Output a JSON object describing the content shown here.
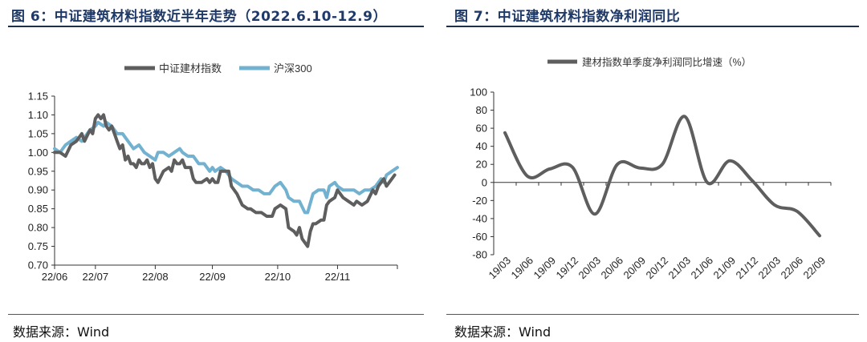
{
  "left": {
    "title": "图 6：中证建筑材料指数近半年走势（2022.6.10-12.9）",
    "source": "数据来源：Wind"
  },
  "right": {
    "title": "图 7：中证建筑材料指数净利润同比",
    "source": "数据来源：Wind"
  },
  "colors": {
    "title": "#1f3a68",
    "series_gray": "#5e5e5e",
    "series_blue": "#72b2d0"
  },
  "chart_data": [
    {
      "type": "line",
      "title": "中证建筑材料指数近半年走势（2022.6.10-12.9）",
      "xlabel": "",
      "ylabel": "",
      "ylim": [
        0.7,
        1.15
      ],
      "xlim": [
        0,
        126
      ],
      "x_ticks": [
        0,
        15,
        37,
        58,
        82,
        104,
        126
      ],
      "x_tick_labels": [
        "22/06",
        "22/07",
        "22/08",
        "22/09",
        "22/10",
        "22/11",
        ""
      ],
      "y_ticks": [
        0.7,
        0.75,
        0.8,
        0.85,
        0.9,
        0.95,
        1.0,
        1.05,
        1.1,
        1.15
      ],
      "y_tick_labels": [
        "0.70",
        "0.75",
        "0.80",
        "0.85",
        "0.90",
        "0.95",
        "1.00",
        "1.05",
        "1.10",
        "1.15"
      ],
      "legend": "top",
      "series": [
        {
          "name": "中证建材指数",
          "color": "#5e5e5e",
          "points": [
            [
              0,
              1.0
            ],
            [
              2,
              1.0
            ],
            [
              4,
              0.99
            ],
            [
              6,
              1.02
            ],
            [
              8,
              1.03
            ],
            [
              10,
              1.05
            ],
            [
              11,
              1.03
            ],
            [
              13,
              1.06
            ],
            [
              14,
              1.05
            ],
            [
              15,
              1.09
            ],
            [
              16,
              1.1
            ],
            [
              17,
              1.09
            ],
            [
              18,
              1.1
            ],
            [
              19,
              1.07
            ],
            [
              20,
              1.06
            ],
            [
              21,
              1.07
            ],
            [
              22,
              1.05
            ],
            [
              23,
              1.03
            ],
            [
              24,
              1.01
            ],
            [
              25,
              1.02
            ],
            [
              26,
              0.98
            ],
            [
              27,
              0.99
            ],
            [
              28,
              0.97
            ],
            [
              29,
              0.97
            ],
            [
              30,
              0.96
            ],
            [
              31,
              0.98
            ],
            [
              32,
              0.97
            ],
            [
              33,
              0.97
            ],
            [
              34,
              0.98
            ],
            [
              35,
              0.96
            ],
            [
              36,
              0.97
            ],
            [
              37,
              0.93
            ],
            [
              38,
              0.92
            ],
            [
              40,
              0.95
            ],
            [
              42,
              0.96
            ],
            [
              43,
              0.95
            ],
            [
              44,
              0.98
            ],
            [
              45,
              0.97
            ],
            [
              46,
              0.97
            ],
            [
              47,
              0.98
            ],
            [
              48,
              0.96
            ],
            [
              50,
              0.96
            ],
            [
              51,
              0.93
            ],
            [
              52,
              0.92
            ],
            [
              54,
              0.92
            ],
            [
              56,
              0.93
            ],
            [
              57,
              0.92
            ],
            [
              58,
              0.93
            ],
            [
              59,
              0.92
            ],
            [
              60,
              0.92
            ],
            [
              61,
              0.95
            ],
            [
              63,
              0.95
            ],
            [
              64,
              0.95
            ],
            [
              65,
              0.91
            ],
            [
              67,
              0.89
            ],
            [
              69,
              0.86
            ],
            [
              71,
              0.85
            ],
            [
              72,
              0.85
            ],
            [
              74,
              0.84
            ],
            [
              76,
              0.84
            ],
            [
              78,
              0.83
            ],
            [
              80,
              0.83
            ],
            [
              81,
              0.85
            ],
            [
              83,
              0.86
            ],
            [
              85,
              0.85
            ],
            [
              86,
              0.8
            ],
            [
              88,
              0.79
            ],
            [
              89,
              0.78
            ],
            [
              90,
              0.8
            ],
            [
              91,
              0.77
            ],
            [
              92,
              0.76
            ],
            [
              93,
              0.75
            ],
            [
              94,
              0.79
            ],
            [
              95,
              0.81
            ],
            [
              96,
              0.81
            ],
            [
              98,
              0.82
            ],
            [
              99,
              0.82
            ],
            [
              100,
              0.86
            ],
            [
              101,
              0.87
            ],
            [
              103,
              0.88
            ],
            [
              104,
              0.9
            ],
            [
              105,
              0.89
            ],
            [
              106,
              0.88
            ],
            [
              108,
              0.87
            ],
            [
              110,
              0.86
            ],
            [
              111,
              0.87
            ],
            [
              113,
              0.86
            ],
            [
              115,
              0.87
            ],
            [
              117,
              0.9
            ],
            [
              118,
              0.89
            ],
            [
              119,
              0.91
            ],
            [
              120,
              0.92
            ],
            [
              121,
              0.93
            ],
            [
              122,
              0.91
            ],
            [
              123,
              0.92
            ],
            [
              124,
              0.93
            ],
            [
              125,
              0.94
            ]
          ]
        },
        {
          "name": "沪深300",
          "color": "#72b2d0",
          "points": [
            [
              0,
              1.01
            ],
            [
              2,
              1.0
            ],
            [
              4,
              1.02
            ],
            [
              6,
              1.03
            ],
            [
              8,
              1.04
            ],
            [
              10,
              1.03
            ],
            [
              12,
              1.05
            ],
            [
              13,
              1.06
            ],
            [
              15,
              1.07
            ],
            [
              16,
              1.08
            ],
            [
              18,
              1.07
            ],
            [
              19,
              1.08
            ],
            [
              21,
              1.07
            ],
            [
              23,
              1.05
            ],
            [
              25,
              1.05
            ],
            [
              27,
              1.03
            ],
            [
              29,
              1.01
            ],
            [
              31,
              1.02
            ],
            [
              33,
              1.0
            ],
            [
              35,
              0.99
            ],
            [
              37,
              0.98
            ],
            [
              38,
              1.0
            ],
            [
              40,
              1.0
            ],
            [
              42,
              0.99
            ],
            [
              44,
              1.0
            ],
            [
              46,
              1.01
            ],
            [
              47,
              1.0
            ],
            [
              49,
              0.99
            ],
            [
              51,
              0.99
            ],
            [
              53,
              0.97
            ],
            [
              55,
              0.97
            ],
            [
              57,
              0.95
            ],
            [
              58,
              0.96
            ],
            [
              59,
              0.95
            ],
            [
              61,
              0.96
            ],
            [
              63,
              0.95
            ],
            [
              65,
              0.93
            ],
            [
              67,
              0.92
            ],
            [
              69,
              0.91
            ],
            [
              71,
              0.91
            ],
            [
              73,
              0.9
            ],
            [
              75,
              0.9
            ],
            [
              77,
              0.89
            ],
            [
              79,
              0.89
            ],
            [
              81,
              0.91
            ],
            [
              83,
              0.92
            ],
            [
              85,
              0.9
            ],
            [
              86,
              0.88
            ],
            [
              88,
              0.87
            ],
            [
              90,
              0.87
            ],
            [
              92,
              0.84
            ],
            [
              93,
              0.84
            ],
            [
              95,
              0.89
            ],
            [
              97,
              0.9
            ],
            [
              99,
              0.9
            ],
            [
              100,
              0.88
            ],
            [
              101,
              0.91
            ],
            [
              103,
              0.92
            ],
            [
              104,
              0.91
            ],
            [
              106,
              0.9
            ],
            [
              108,
              0.9
            ],
            [
              110,
              0.9
            ],
            [
              112,
              0.89
            ],
            [
              114,
              0.9
            ],
            [
              116,
              0.9
            ],
            [
              118,
              0.91
            ],
            [
              120,
              0.93
            ],
            [
              121,
              0.92
            ],
            [
              122,
              0.94
            ],
            [
              124,
              0.95
            ],
            [
              126,
              0.96
            ]
          ]
        }
      ]
    },
    {
      "type": "line",
      "title": "中证建筑材料指数净利润同比",
      "xlabel": "",
      "ylabel": "",
      "ylim": [
        -80,
        100
      ],
      "categories": [
        "19/03",
        "19/06",
        "19/09",
        "19/12",
        "20/03",
        "20/06",
        "20/09",
        "20/12",
        "21/03",
        "21/06",
        "21/09",
        "21/12",
        "22/03",
        "22/06",
        "22/09"
      ],
      "y_ticks": [
        -80,
        -60,
        -40,
        -20,
        0,
        20,
        40,
        60,
        80,
        100
      ],
      "y_tick_labels": [
        "-80",
        "-60",
        "-40",
        "-20",
        "0",
        "20",
        "40",
        "60",
        "80",
        "100"
      ],
      "legend": "top",
      "series": [
        {
          "name": "建材指数单季度净利润同比增速（%）",
          "color": "#5e5e5e",
          "values": [
            55,
            7,
            15,
            17,
            -35,
            20,
            16,
            20,
            73,
            0,
            24,
            2,
            -25,
            -32,
            -59
          ]
        }
      ]
    }
  ]
}
